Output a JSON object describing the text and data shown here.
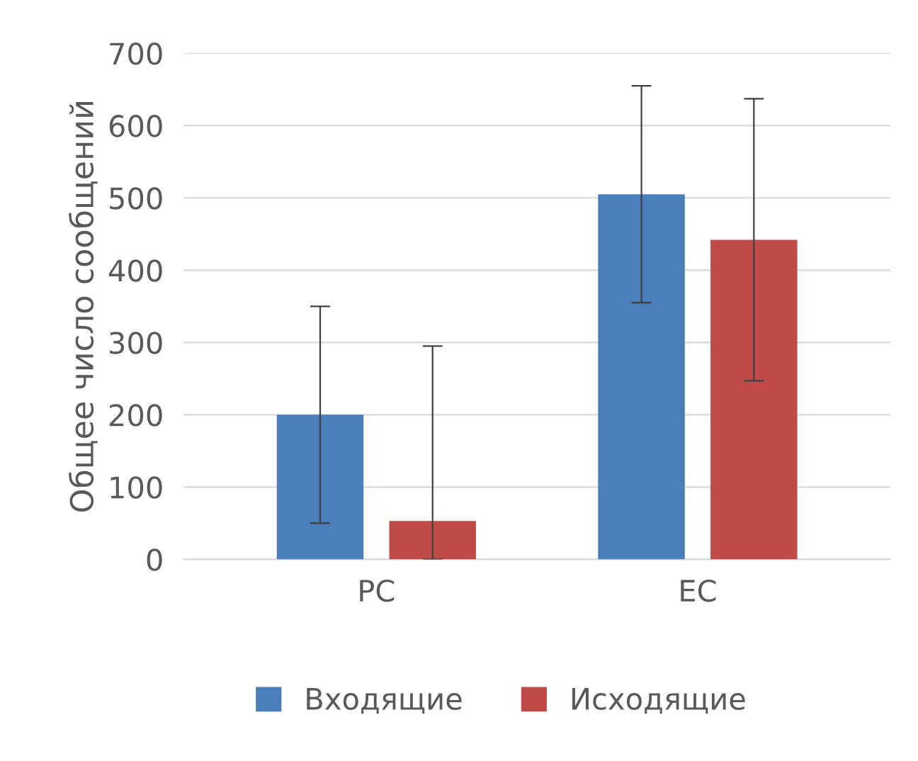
{
  "chart_data": {
    "type": "bar",
    "ylabel": "Общее число сообщений",
    "categories": [
      "PC",
      "EC"
    ],
    "series": [
      {
        "name": "Входящие",
        "color": "#4a7ebb",
        "values": [
          200,
          505
        ],
        "errors": [
          150,
          150
        ]
      },
      {
        "name": "Исходящие",
        "color": "#be4b48",
        "values": [
          53,
          442
        ],
        "errors": [
          [
            0,
            295
          ],
          195
        ]
      }
    ],
    "ylim": [
      0,
      700
    ],
    "yticks": [
      0,
      100,
      200,
      300,
      400,
      500,
      600,
      700
    ],
    "grid": "y",
    "legend": "bottom"
  }
}
